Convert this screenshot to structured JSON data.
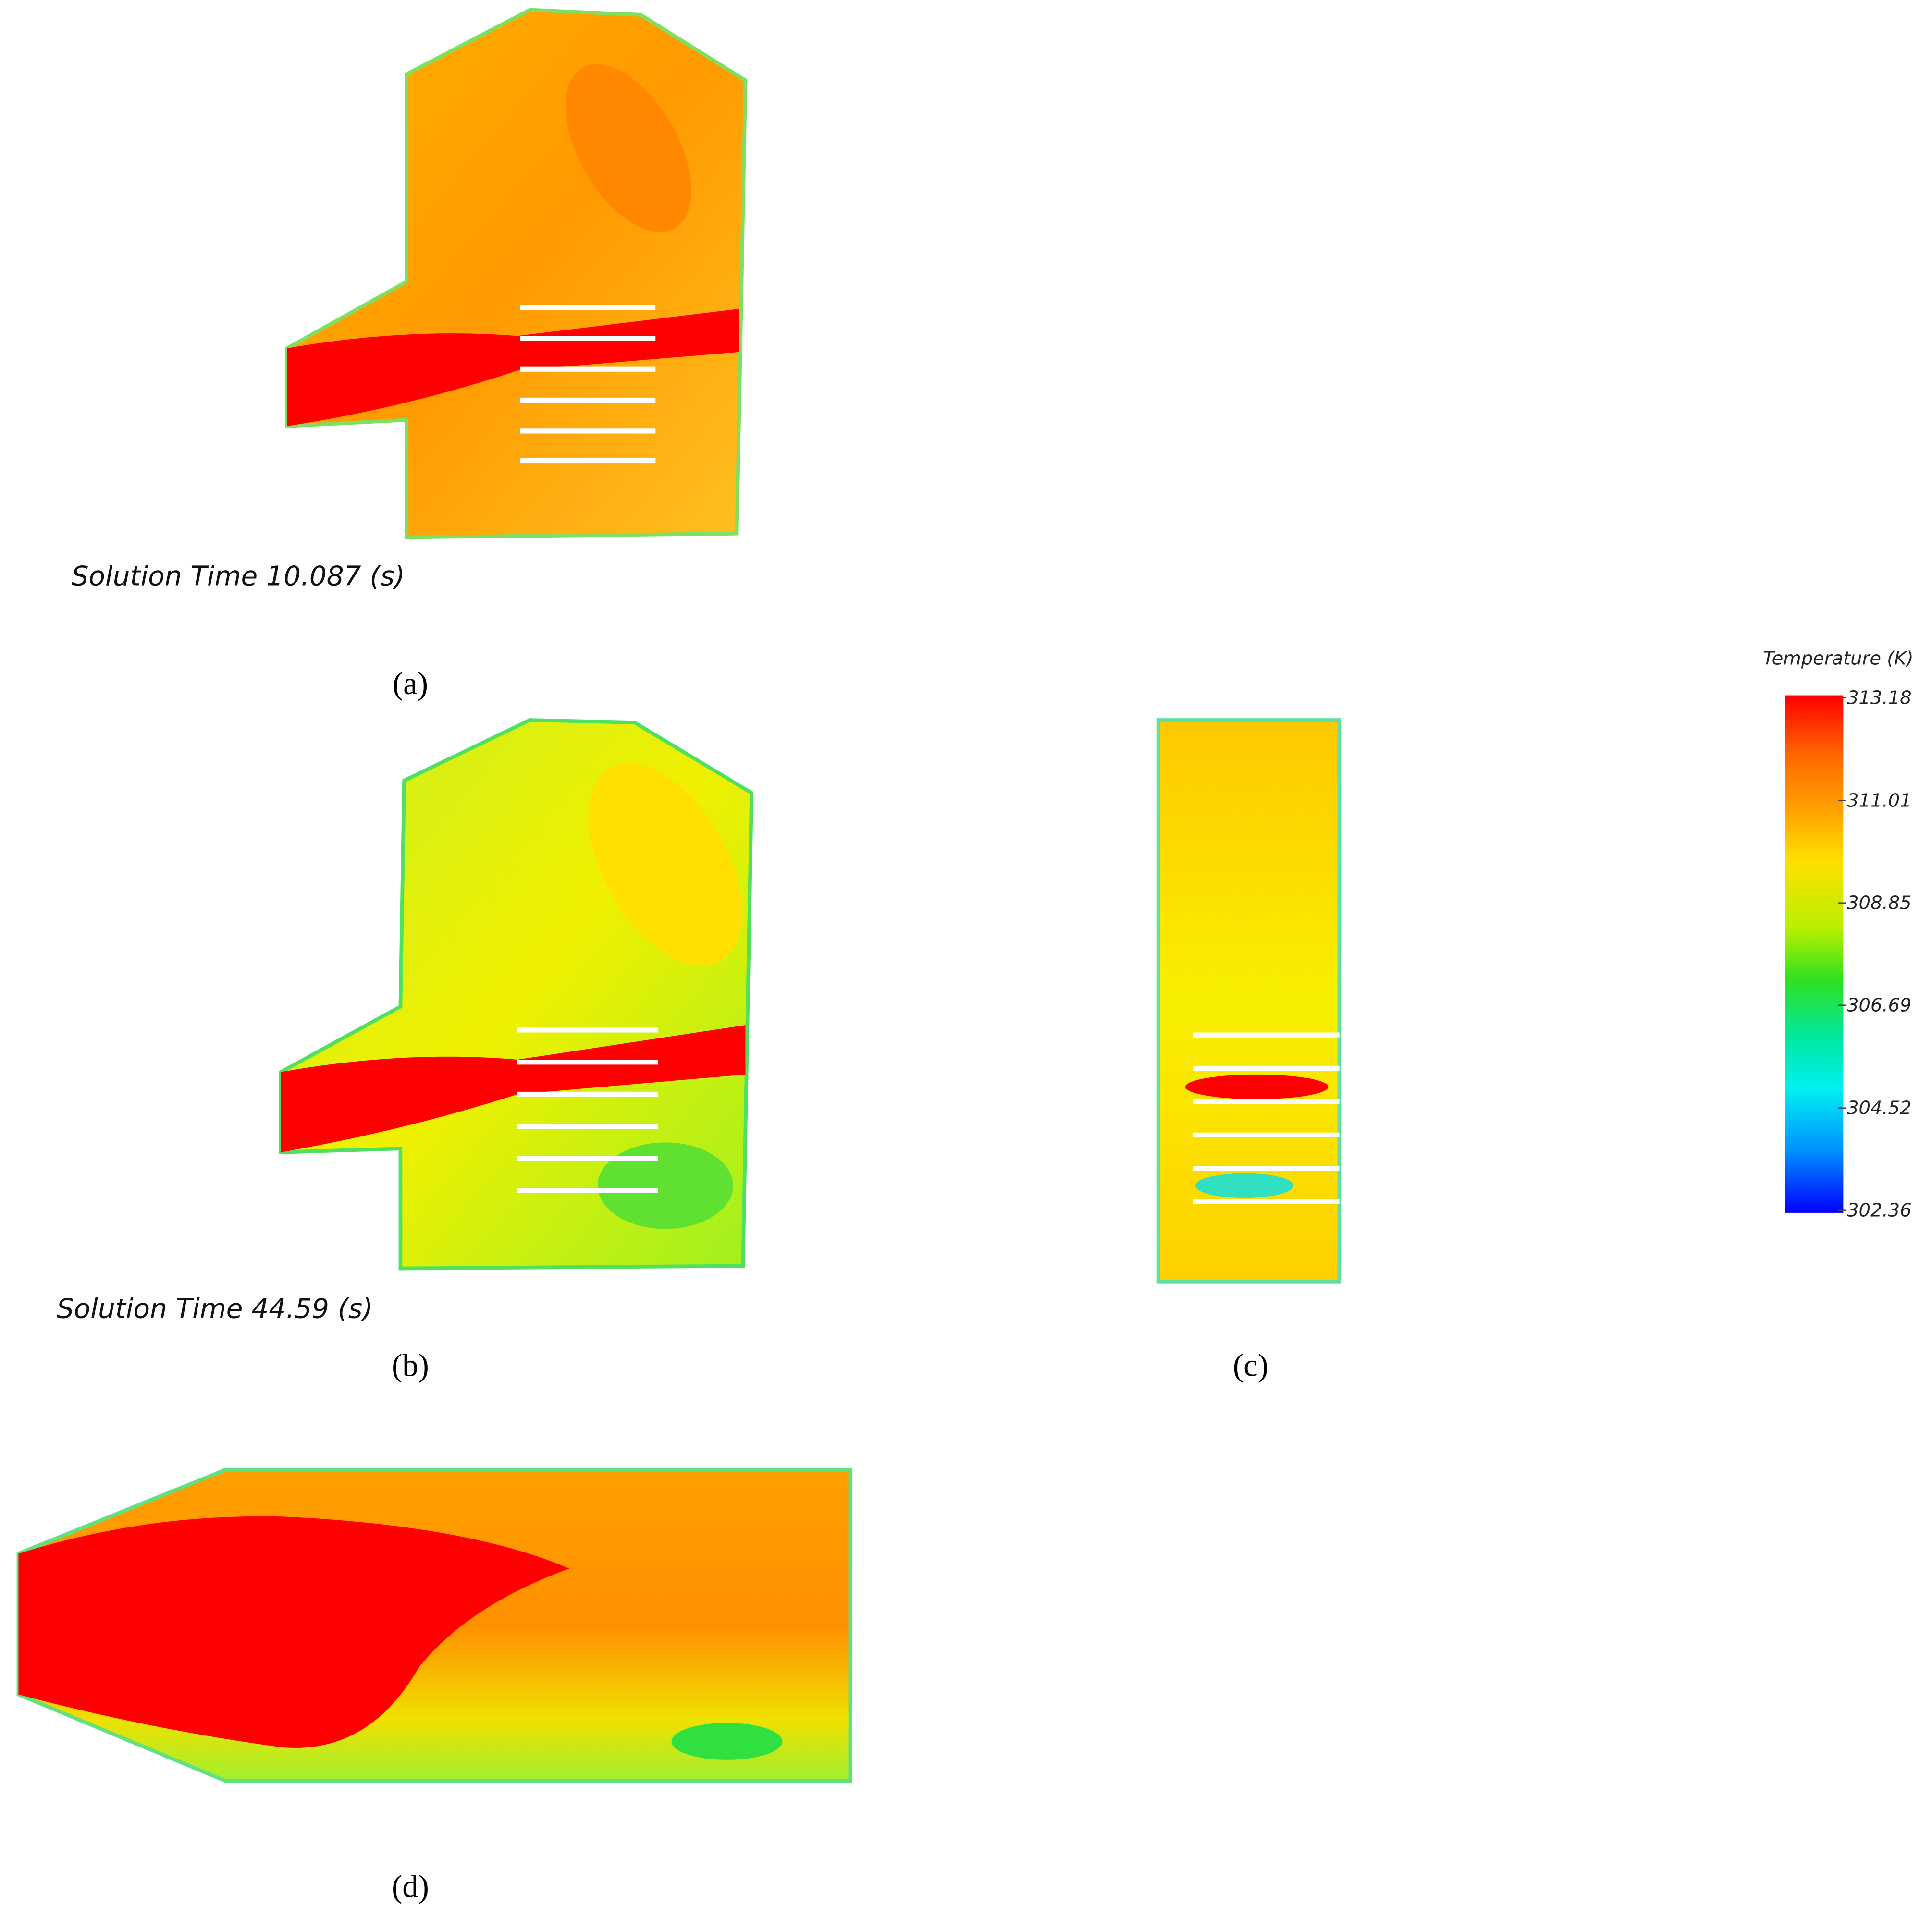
{
  "panels": [
    {
      "label": "(a)",
      "caption": "Solution Time 10.087 (s)"
    },
    {
      "label": "(b)",
      "caption": "Solution Time 44.59 (s)"
    },
    {
      "label": "(c)"
    },
    {
      "label": "(d)"
    }
  ],
  "colorbar": {
    "title": "Temperature (K)",
    "range": [
      302.36,
      313.18
    ],
    "ticks": [
      313.18,
      311.01,
      308.85,
      306.69,
      304.52,
      302.36
    ]
  }
}
